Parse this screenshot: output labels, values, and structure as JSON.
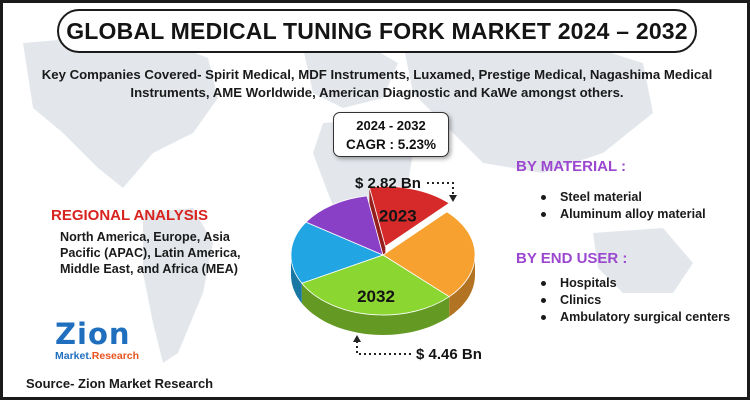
{
  "title": "GLOBAL MEDICAL TUNING FORK MARKET 2024 – 2032",
  "companies": "Key Companies Covered- Spirit Medical, MDF Instruments, Luxamed, Prestige Medical, Nagashima Medical Instruments, AME Worldwide, American Diagnostic and KaWe amongst others.",
  "cagr": {
    "years": "2024 - 2032",
    "value": "CAGR : 5.23%"
  },
  "regional": {
    "title": "REGIONAL ANALYSIS",
    "text": "North America, Europe, Asia Pacific (APAC), Latin America, Middle East, and Africa (MEA)"
  },
  "material": {
    "title": "BY MATERIAL :",
    "items": [
      "Steel material",
      "Aluminum alloy material"
    ]
  },
  "end_user": {
    "title": "BY END USER :",
    "items": [
      "Hospitals",
      "Clinics",
      "Ambulatory surgical centers"
    ]
  },
  "source": "Source- Zion Market Research",
  "logo": {
    "word": "Zion",
    "sub_a": "Market.",
    "sub_b": "Research"
  },
  "colors": {
    "accent_red": "#d8231f",
    "accent_purple": "#9b47cf",
    "logo_blue": "#1f6fbe"
  },
  "chart_data": {
    "type": "pie",
    "title": "",
    "annotations": [
      {
        "label": "2023",
        "value_text": "$ 2.82 Bn",
        "value": 2.82,
        "unit": "USD Bn"
      },
      {
        "label": "2032",
        "value_text": "$ 4.46 Bn",
        "value": 4.46,
        "unit": "USD Bn"
      }
    ],
    "slices": [
      {
        "color": "#d62a2a",
        "value": 15,
        "label": "2023"
      },
      {
        "color": "#f7a131",
        "value": 25,
        "label": ""
      },
      {
        "color": "#8bd631",
        "value": 30,
        "label": "2032"
      },
      {
        "color": "#22a5e3",
        "value": 17,
        "label": ""
      },
      {
        "color": "#8a3fc7",
        "value": 13,
        "label": ""
      }
    ]
  }
}
